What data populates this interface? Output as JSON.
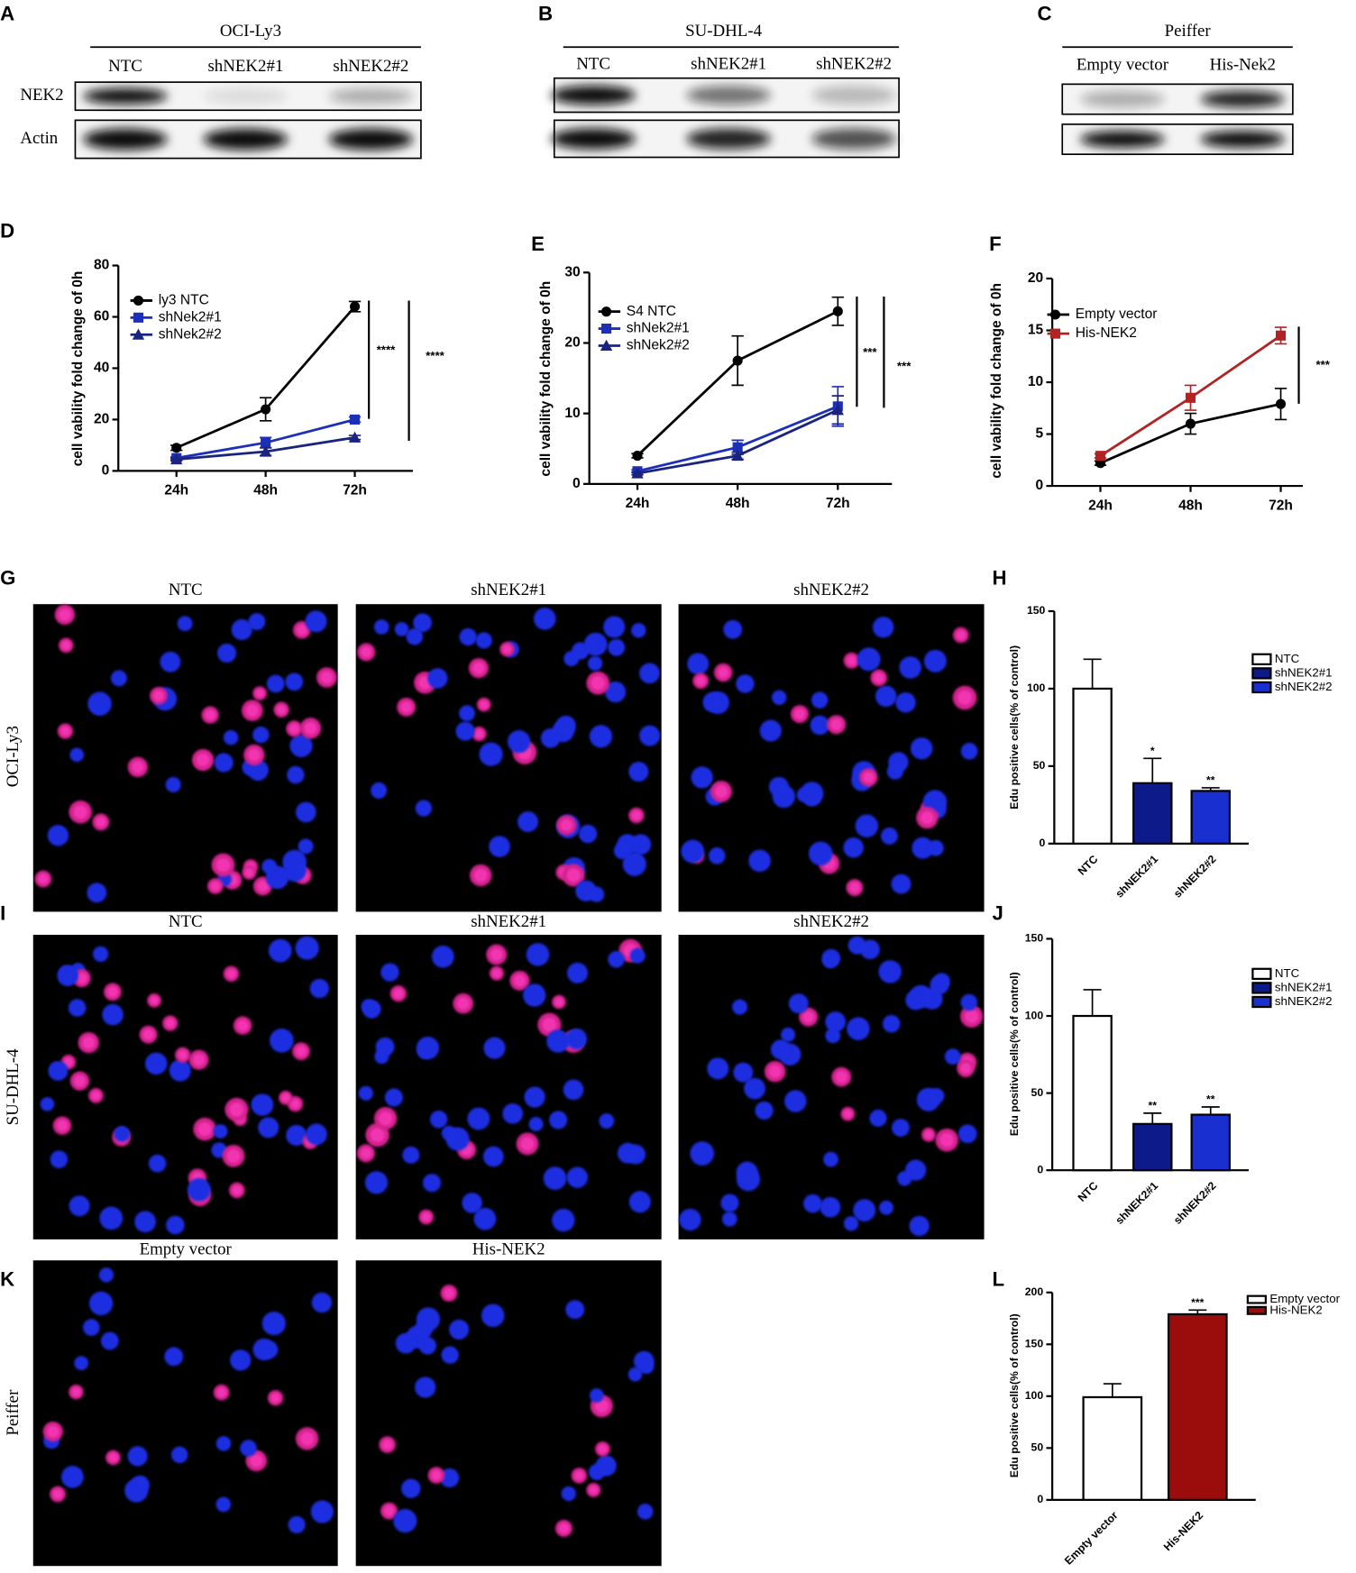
{
  "blots": [
    {
      "label": "A",
      "title": "OCI-Ly3",
      "lanes": [
        "NTC",
        "shNEK2#1",
        "shNEK2#2"
      ],
      "rows": [
        "NEK2",
        "Actin"
      ]
    },
    {
      "label": "B",
      "title": "SU-DHL-4",
      "lanes": [
        "NTC",
        "shNEK2#1",
        "shNEK2#2"
      ]
    },
    {
      "label": "C",
      "title": "Peiffer",
      "lanes": [
        "Empty vector",
        "His-Nek2"
      ]
    }
  ],
  "images": [
    {
      "label": "G",
      "row_label": "OCI-Ly3",
      "columns": [
        "NTC",
        "shNEK2#1",
        "shNEK2#2"
      ]
    },
    {
      "label": "I",
      "row_label": "SU-DHL-4",
      "columns": [
        "NTC",
        "shNEK2#1",
        "shNEK2#2"
      ]
    },
    {
      "label": "K",
      "row_label": "Peiffer",
      "columns": [
        "Empty vector",
        "His-NEK2"
      ]
    }
  ],
  "chart_data": [
    {
      "type": "line",
      "label": "D",
      "y_label": "cell vability fold change of 0h",
      "categories": [
        "24h",
        "48h",
        "72h"
      ],
      "ylim": [
        0,
        80
      ],
      "yticks": [
        0,
        20,
        40,
        60,
        80
      ],
      "series": [
        {
          "name": "ly3 NTC",
          "color": "#000000",
          "marker": "circle",
          "values": [
            9,
            24,
            64
          ],
          "errors": [
            1,
            4.5,
            2
          ]
        },
        {
          "name": "shNek2#1",
          "color": "#1c2fb8",
          "marker": "square",
          "values": [
            5,
            11,
            20
          ],
          "errors": [
            0.5,
            2,
            1
          ]
        },
        {
          "name": "shNek2#2",
          "color": "#1a237e",
          "marker": "triangle",
          "values": [
            4.5,
            7.5,
            13
          ],
          "errors": [
            0.5,
            1.5,
            0.8
          ]
        }
      ],
      "significance": [
        "****",
        "****"
      ]
    },
    {
      "type": "line",
      "label": "E",
      "y_label": "cell vability fold change of 0h",
      "categories": [
        "24h",
        "48h",
        "72h"
      ],
      "ylim": [
        0,
        30
      ],
      "yticks": [
        0,
        10,
        20,
        30
      ],
      "series": [
        {
          "name": "S4 NTC",
          "color": "#000000",
          "marker": "circle",
          "values": [
            4,
            17.5,
            24.5
          ],
          "errors": [
            0.3,
            3.5,
            2
          ]
        },
        {
          "name": "shNek2#1",
          "color": "#1c2fb8",
          "marker": "square",
          "values": [
            1.8,
            5.2,
            11
          ],
          "errors": [
            0.2,
            1,
            2.8
          ]
        },
        {
          "name": "shNek2#2",
          "color": "#1a237e",
          "marker": "triangle",
          "values": [
            1.5,
            4,
            10.5
          ],
          "errors": [
            0.2,
            0.5,
            2
          ]
        }
      ],
      "significance": [
        "***",
        "***"
      ]
    },
    {
      "type": "line",
      "label": "F",
      "y_label": "cell vability fold change of 0h",
      "categories": [
        "24h",
        "48h",
        "72h"
      ],
      "ylim": [
        0,
        20
      ],
      "yticks": [
        0,
        5,
        10,
        15,
        20
      ],
      "series": [
        {
          "name": "Empty vector",
          "color": "#000000",
          "marker": "circle",
          "values": [
            2.2,
            6,
            7.9
          ],
          "errors": [
            0.2,
            1,
            1.5
          ]
        },
        {
          "name": "His-NEK2",
          "color": "#b22222",
          "marker": "square",
          "values": [
            2.9,
            8.5,
            14.5
          ],
          "errors": [
            0.2,
            1.2,
            0.8
          ]
        }
      ],
      "significance": [
        "***"
      ]
    },
    {
      "type": "bar",
      "label": "H",
      "y_label": "Edu positive cells(% of control)",
      "categories": [
        "NTC",
        "shNEK2#1",
        "shNEK2#2"
      ],
      "values": [
        100,
        39,
        34
      ],
      "errors": [
        19,
        16,
        2
      ],
      "colors": [
        "#ffffff",
        "#0d1a8a",
        "#1a2fd0"
      ],
      "ylim": [
        0,
        150
      ],
      "yticks": [
        0,
        50,
        100,
        150
      ],
      "significance": [
        null,
        "*",
        "**"
      ]
    },
    {
      "type": "bar",
      "label": "J",
      "y_label": "Edu positive cells(% of control)",
      "categories": [
        "NTC",
        "shNEK2#1",
        "shNEK2#2"
      ],
      "values": [
        100,
        30,
        36
      ],
      "errors": [
        17,
        7,
        5
      ],
      "colors": [
        "#ffffff",
        "#0d1a8a",
        "#1a2fd0"
      ],
      "ylim": [
        0,
        150
      ],
      "yticks": [
        0,
        50,
        100,
        150
      ],
      "significance": [
        null,
        "**",
        "**"
      ]
    },
    {
      "type": "bar",
      "label": "L",
      "y_label": "Edu positive cells(% of control)",
      "categories": [
        "Empty vector",
        "His-NEK2"
      ],
      "values": [
        99,
        179
      ],
      "errors": [
        13,
        4
      ],
      "colors": [
        "#ffffff",
        "#9b0d0d"
      ],
      "ylim": [
        0,
        200
      ],
      "yticks": [
        0,
        50,
        100,
        150,
        200
      ],
      "significance": [
        null,
        "***"
      ]
    }
  ]
}
